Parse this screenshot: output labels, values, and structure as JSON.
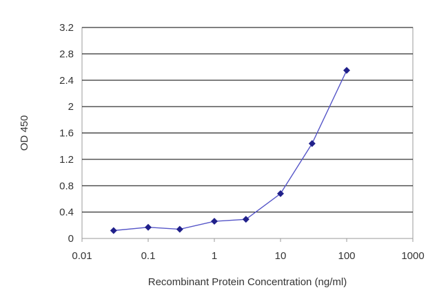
{
  "chart_data": {
    "type": "line",
    "x_scale": "log",
    "xlabel": "Recombinant Protein Concentration (ng/ml)",
    "ylabel": "OD 450",
    "xlim": [
      0.01,
      1000
    ],
    "ylim": [
      0,
      3.2
    ],
    "x_ticks": [
      "0.01",
      "0.1",
      "1",
      "10",
      "100",
      "1000"
    ],
    "y_ticks": [
      "0",
      "0.4",
      "0.8",
      "1.2",
      "1.6",
      "2",
      "2.4",
      "2.8",
      "3.2"
    ],
    "grid": "horizontal",
    "colors": {
      "line": "#5555c8",
      "marker": "#20208a",
      "grid": "#000000",
      "plot_border": "#9a9a9a"
    },
    "series": [
      {
        "x": [
          0.03,
          0.1,
          0.3,
          1,
          3,
          10,
          30,
          100
        ],
        "y": [
          0.12,
          0.17,
          0.14,
          0.26,
          0.29,
          0.68,
          1.44,
          2.55
        ]
      }
    ]
  }
}
